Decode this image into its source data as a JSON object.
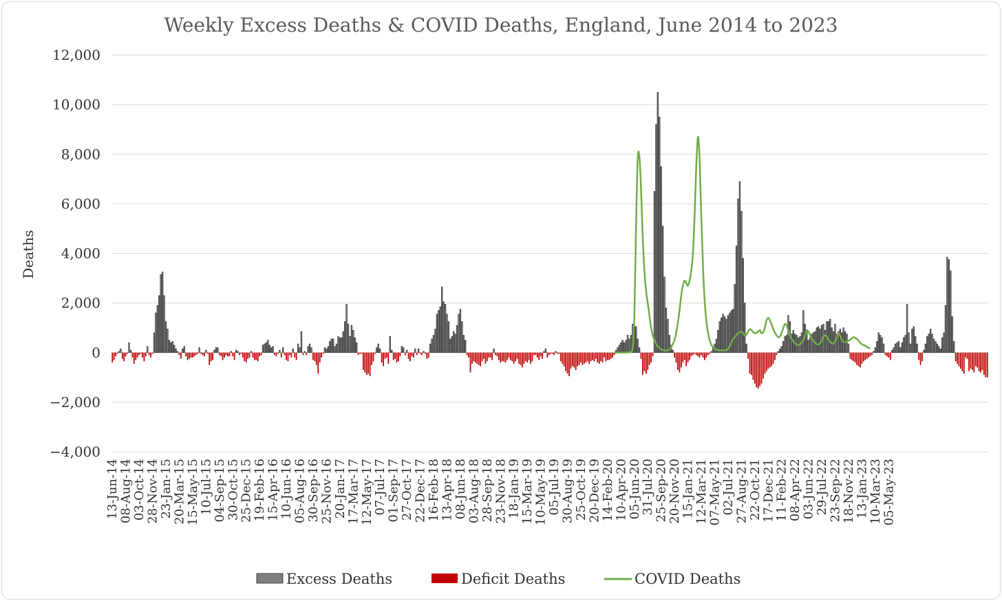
{
  "chart_data": {
    "type": "bar",
    "title": "Weekly Excess Deaths & COVID Deaths, England, June 2014 to 2023",
    "ylabel": "Deaths",
    "xlabel": "",
    "ylim": [
      -4000,
      12000
    ],
    "yticks": [
      12000,
      10000,
      8000,
      6000,
      4000,
      2000,
      0,
      -2000,
      -4000
    ],
    "ytick_labels": [
      "12,000",
      "10,000",
      "8,000",
      "6,000",
      "4,000",
      "2,000",
      "0",
      "−2,000",
      "−4,000"
    ],
    "x_tick_labels": [
      "13-Jun-14",
      "08-Aug-14",
      "03-Oct-14",
      "28-Nov-14",
      "23-Jan-15",
      "20-Mar-15",
      "15-May-15",
      "10-Jul-15",
      "04-Sep-15",
      "30-Oct-15",
      "25-Dec-15",
      "19-Feb-16",
      "15-Apr-16",
      "10-Jun-16",
      "05-Aug-16",
      "30-Sep-16",
      "25-Nov-16",
      "20-Jan-17",
      "17-Mar-17",
      "12-May-17",
      "07-Jul-17",
      "01-Sep-17",
      "27-Oct-17",
      "22-Dec-17",
      "16-Feb-18",
      "13-Apr-18",
      "08-Jun-18",
      "03-Aug-18",
      "28-Sep-18",
      "23-Nov-18",
      "18-Jan-19",
      "15-Mar-19",
      "10-May-19",
      "05-Jul-19",
      "30-Aug-19",
      "25-Oct-19",
      "20-Dec-19",
      "14-Feb-20",
      "10-Apr-20",
      "05-Jun-20",
      "31-Jul-20",
      "25-Sep-20",
      "20-Nov-20",
      "15-Jan-21",
      "12-Mar-21",
      "07-May-21",
      "02-Jul-21",
      "27-Aug-21",
      "22-Oct-21",
      "17-Dec-21",
      "11-Feb-22",
      "08-Apr-22",
      "03-Jun-22",
      "29-Jul-22",
      "23-Sep-22",
      "18-Nov-22",
      "13-Jan-23",
      "10-Mar-23",
      "05-May-23"
    ],
    "weeks_per_tick": 8,
    "grid": true,
    "legend_position": "bottom",
    "series": [
      {
        "name": "Excess Deaths",
        "type": "bar",
        "color": "#7f7f7f"
      },
      {
        "name": "Deficit Deaths",
        "type": "bar",
        "color": "#c00000"
      },
      {
        "name": "COVID Deaths",
        "type": "line",
        "color": "#70ad47"
      }
    ],
    "weekly_values": [
      -400,
      -300,
      -150,
      -50,
      50,
      150,
      -250,
      -350,
      -150,
      -50,
      400,
      100,
      -200,
      -450,
      -300,
      -200,
      -100,
      -50,
      -200,
      -350,
      -150,
      250,
      -100,
      -200,
      -50,
      800,
      1600,
      1900,
      2300,
      3150,
      3250,
      2300,
      1250,
      950,
      500,
      400,
      450,
      300,
      150,
      50,
      -100,
      -250,
      150,
      250,
      -150,
      -300,
      -250,
      -200,
      -200,
      -150,
      -100,
      -50,
      200,
      -50,
      -100,
      -150,
      100,
      -50,
      -500,
      -350,
      -300,
      100,
      200,
      200,
      -100,
      -150,
      -300,
      -200,
      -100,
      -150,
      -150,
      50,
      -150,
      -300,
      100,
      50,
      -100,
      -50,
      -200,
      -350,
      -400,
      -250,
      -200,
      50,
      -200,
      -300,
      -300,
      -350,
      -150,
      -100,
      300,
      350,
      400,
      500,
      300,
      200,
      250,
      -100,
      -150,
      -50,
      100,
      -200,
      200,
      -100,
      -300,
      -350,
      -100,
      -200,
      150,
      -200,
      -300,
      350,
      200,
      850,
      -100,
      50,
      -100,
      250,
      350,
      200,
      -300,
      -350,
      -500,
      -850,
      -400,
      -200,
      -50,
      200,
      150,
      250,
      450,
      550,
      550,
      250,
      350,
      650,
      600,
      600,
      850,
      1250,
      1950,
      1150,
      650,
      1100,
      900,
      600,
      400,
      -100,
      -50,
      -50,
      -700,
      -800,
      -900,
      -850,
      -950,
      -500,
      -350,
      -50,
      200,
      350,
      150,
      -400,
      -550,
      -250,
      -200,
      -450,
      650,
      100,
      -300,
      -250,
      -400,
      -350,
      -150,
      250,
      200,
      -100,
      100,
      -250,
      -350,
      -150,
      -200,
      150,
      -100,
      150,
      -50,
      -100,
      50,
      -50,
      -250,
      -200,
      350,
      550,
      700,
      950,
      1550,
      1700,
      1850,
      2650,
      2050,
      1950,
      1550,
      1250,
      550,
      650,
      850,
      750,
      1100,
      1550,
      1750,
      1250,
      700,
      500,
      -100,
      -200,
      -800,
      -450,
      -350,
      -400,
      -450,
      -500,
      -550,
      -350,
      -250,
      -450,
      -350,
      -200,
      -200,
      -300,
      150,
      -100,
      -150,
      -300,
      -400,
      -350,
      -350,
      -400,
      -300,
      -200,
      -300,
      -350,
      -450,
      -350,
      -250,
      -450,
      -500,
      -600,
      -450,
      -350,
      -400,
      -300,
      -450,
      -350,
      -100,
      -100,
      -200,
      -300,
      -150,
      -250,
      50,
      150,
      -200,
      -100,
      -50,
      -50,
      -100,
      50,
      -50,
      -50,
      -350,
      -450,
      -550,
      -750,
      -850,
      -950,
      -650,
      -550,
      -600,
      -700,
      -550,
      -500,
      -400,
      -500,
      -450,
      -400,
      -350,
      -450,
      -350,
      -300,
      -350,
      -250,
      -400,
      -450,
      -350,
      -400,
      -200,
      -350,
      -300,
      -300,
      -250,
      -200,
      -100,
      100,
      200,
      300,
      400,
      500,
      400,
      500,
      700,
      550,
      700,
      1150,
      1050,
      1050,
      550,
      200,
      -250,
      -900,
      -750,
      -850,
      -700,
      -500,
      -400,
      -150,
      6500,
      9200,
      10500,
      9500,
      7500,
      5100,
      3050,
      1800,
      1350,
      700,
      300,
      100,
      -200,
      -400,
      -700,
      -800,
      -600,
      -400,
      -300,
      -550,
      -400,
      -300,
      -150,
      -100,
      -50,
      -100,
      -150,
      -200,
      -100,
      -200,
      -300,
      -200,
      -100,
      -50,
      50,
      200,
      350,
      550,
      900,
      1250,
      1400,
      1550,
      1450,
      1350,
      1500,
      1600,
      1700,
      1750,
      2750,
      4300,
      6200,
      6900,
      5700,
      3800,
      2000,
      350,
      -250,
      -850,
      -900,
      -1100,
      -1250,
      -1400,
      -1450,
      -1350,
      -1250,
      -1050,
      -850,
      -750,
      -650,
      -600,
      -550,
      -450,
      -300,
      -100,
      50,
      150,
      250,
      450,
      650,
      700,
      1500,
      1250,
      750,
      900,
      750,
      700,
      600,
      650,
      800,
      1700,
      1150,
      850,
      500,
      600,
      750,
      800,
      850,
      1000,
      1050,
      950,
      1100,
      1150,
      900,
      1250,
      1250,
      1350,
      1000,
      850,
      1150,
      750,
      850,
      950,
      800,
      1000,
      850,
      750,
      350,
      -250,
      -300,
      -350,
      -400,
      -500,
      -550,
      -600,
      -450,
      -350,
      -300,
      -250,
      -200,
      -150,
      -100,
      50,
      200,
      450,
      800,
      700,
      600,
      350,
      -100,
      -150,
      -200,
      -300,
      100,
      200,
      350,
      400,
      450,
      200,
      400,
      600,
      700,
      1950,
      800,
      350,
      950,
      1050,
      650,
      350,
      -300,
      -500,
      -350,
      100,
      350,
      650,
      750,
      950,
      750,
      550,
      450,
      350,
      250,
      150,
      600,
      800,
      1900,
      3850,
      3750,
      3300,
      1450,
      450,
      -350,
      -450,
      -550,
      -650,
      -750,
      -850,
      -200,
      -250,
      -750,
      -650,
      -700,
      -800,
      -550,
      -600,
      -750,
      -800,
      -700,
      -900,
      -1000,
      -1000
    ],
    "covid_line": [
      [
        300,
        0
      ],
      [
        304,
        0
      ],
      [
        306,
        0
      ],
      [
        308,
        10
      ],
      [
        310,
        30
      ],
      [
        311,
        200
      ],
      [
        312,
        1500
      ],
      [
        313,
        5000
      ],
      [
        314,
        7800
      ],
      [
        315,
        7900
      ],
      [
        316,
        6600
      ],
      [
        317,
        4700
      ],
      [
        318,
        3300
      ],
      [
        319,
        2500
      ],
      [
        320,
        2000
      ],
      [
        321,
        1500
      ],
      [
        322,
        1000
      ],
      [
        323,
        700
      ],
      [
        324,
        500
      ],
      [
        325,
        350
      ],
      [
        326,
        250
      ],
      [
        327,
        180
      ],
      [
        328,
        130
      ],
      [
        329,
        100
      ],
      [
        330,
        90
      ],
      [
        331,
        80
      ],
      [
        332,
        100
      ],
      [
        333,
        130
      ],
      [
        334,
        220
      ],
      [
        335,
        350
      ],
      [
        336,
        500
      ],
      [
        337,
        800
      ],
      [
        338,
        1200
      ],
      [
        339,
        1700
      ],
      [
        340,
        2300
      ],
      [
        341,
        2700
      ],
      [
        342,
        2900
      ],
      [
        343,
        2800
      ],
      [
        344,
        2700
      ],
      [
        345,
        2900
      ],
      [
        346,
        3300
      ],
      [
        347,
        4000
      ],
      [
        348,
        5500
      ],
      [
        349,
        7500
      ],
      [
        350,
        8700
      ],
      [
        351,
        7800
      ],
      [
        352,
        5500
      ],
      [
        353,
        3500
      ],
      [
        354,
        2100
      ],
      [
        355,
        1300
      ],
      [
        356,
        800
      ],
      [
        357,
        500
      ],
      [
        358,
        320
      ],
      [
        359,
        220
      ],
      [
        360,
        160
      ],
      [
        361,
        120
      ],
      [
        362,
        100
      ],
      [
        363,
        90
      ],
      [
        364,
        90
      ],
      [
        365,
        90
      ],
      [
        366,
        90
      ],
      [
        367,
        100
      ],
      [
        368,
        150
      ],
      [
        369,
        250
      ],
      [
        370,
        400
      ],
      [
        371,
        550
      ],
      [
        372,
        620
      ],
      [
        373,
        700
      ],
      [
        374,
        780
      ],
      [
        375,
        820
      ],
      [
        376,
        850
      ],
      [
        377,
        780
      ],
      [
        378,
        700
      ],
      [
        379,
        720
      ],
      [
        380,
        850
      ],
      [
        381,
        950
      ],
      [
        382,
        900
      ],
      [
        383,
        830
      ],
      [
        384,
        780
      ],
      [
        385,
        800
      ],
      [
        386,
        850
      ],
      [
        387,
        900
      ],
      [
        388,
        780
      ],
      [
        389,
        820
      ],
      [
        390,
        1000
      ],
      [
        391,
        1300
      ],
      [
        392,
        1400
      ],
      [
        393,
        1300
      ],
      [
        394,
        1150
      ],
      [
        395,
        950
      ],
      [
        396,
        800
      ],
      [
        397,
        700
      ],
      [
        398,
        620
      ],
      [
        399,
        650
      ],
      [
        400,
        800
      ],
      [
        401,
        1000
      ],
      [
        402,
        1150
      ],
      [
        403,
        1100
      ],
      [
        404,
        900
      ],
      [
        405,
        700
      ],
      [
        406,
        550
      ],
      [
        407,
        450
      ],
      [
        408,
        380
      ],
      [
        409,
        320
      ],
      [
        410,
        300
      ],
      [
        411,
        330
      ],
      [
        412,
        400
      ],
      [
        413,
        500
      ],
      [
        414,
        700
      ],
      [
        415,
        900
      ],
      [
        416,
        850
      ],
      [
        417,
        700
      ],
      [
        418,
        560
      ],
      [
        419,
        470
      ],
      [
        420,
        400
      ],
      [
        421,
        340
      ],
      [
        422,
        320
      ],
      [
        423,
        380
      ],
      [
        424,
        500
      ],
      [
        425,
        650
      ],
      [
        426,
        700
      ],
      [
        427,
        650
      ],
      [
        428,
        520
      ],
      [
        429,
        430
      ],
      [
        430,
        380
      ],
      [
        431,
        360
      ],
      [
        432,
        450
      ],
      [
        433,
        620
      ],
      [
        434,
        780
      ],
      [
        435,
        680
      ],
      [
        436,
        520
      ],
      [
        437,
        430
      ],
      [
        438,
        420
      ],
      [
        439,
        440
      ],
      [
        440,
        480
      ],
      [
        441,
        520
      ],
      [
        442,
        580
      ],
      [
        443,
        620
      ],
      [
        444,
        600
      ],
      [
        445,
        550
      ],
      [
        446,
        480
      ],
      [
        447,
        400
      ],
      [
        448,
        330
      ],
      [
        449,
        300
      ],
      [
        450,
        280
      ],
      [
        451,
        230
      ],
      [
        452,
        190
      ],
      [
        453,
        170
      ]
    ]
  },
  "legend": {
    "excess_label": "Excess Deaths",
    "deficit_label": "Deficit Deaths",
    "covid_label": "COVID Deaths"
  }
}
